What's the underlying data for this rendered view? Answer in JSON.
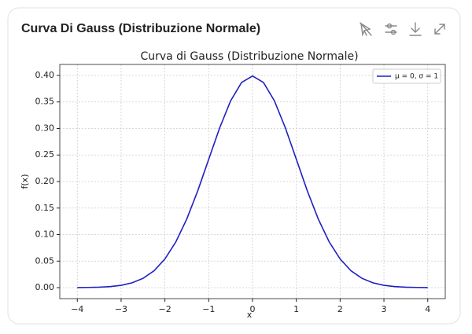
{
  "header": {
    "title": "Curva Di Gauss (Distribuzione Normale)"
  },
  "chart_data": {
    "type": "line",
    "title": "Curva di Gauss (Distribuzione Normale)",
    "x_label": "x",
    "y_label": "f(x)",
    "x": [
      -4,
      -3.75,
      -3.5,
      -3.25,
      -3,
      -2.75,
      -2.5,
      -2.25,
      -2,
      -1.75,
      -1.5,
      -1.25,
      -1,
      -0.75,
      -0.5,
      -0.25,
      0,
      0.25,
      0.5,
      0.75,
      1,
      1.25,
      1.5,
      1.75,
      2,
      2.25,
      2.5,
      2.75,
      3,
      3.25,
      3.5,
      3.75,
      4
    ],
    "series": [
      {
        "name": "μ = 0, σ = 1",
        "color": "#1f1fbf",
        "values": [
          0.0001,
          0.0004,
          0.0009,
          0.002,
          0.0044,
          0.0091,
          0.0175,
          0.0317,
          0.054,
          0.0863,
          0.1295,
          0.1826,
          0.242,
          0.3011,
          0.3521,
          0.3867,
          0.3989,
          0.3867,
          0.3521,
          0.3011,
          0.242,
          0.1826,
          0.1295,
          0.0863,
          0.054,
          0.0317,
          0.0175,
          0.0091,
          0.0044,
          0.002,
          0.0009,
          0.0004,
          0.0001
        ]
      }
    ],
    "xlim": [
      -4.4,
      4.4
    ],
    "xticks": [
      {
        "value": -4,
        "label": "−4"
      },
      {
        "value": -3,
        "label": "−3"
      },
      {
        "value": -2,
        "label": "−2"
      },
      {
        "value": -1,
        "label": "−1"
      },
      0,
      1,
      2,
      3,
      4
    ],
    "ylim": [
      -0.0207,
      0.4207
    ],
    "yticks": [
      {
        "value": 0,
        "label": "0.00"
      },
      {
        "value": 0.05,
        "label": "0.05"
      },
      {
        "value": 0.1,
        "label": "0.10"
      },
      {
        "value": 0.15,
        "label": "0.15"
      },
      {
        "value": 0.2,
        "label": "0.20"
      },
      {
        "value": 0.25,
        "label": "0.25"
      },
      {
        "value": 0.3,
        "label": "0.30"
      },
      {
        "value": 0.35,
        "label": "0.35"
      },
      {
        "value": 0.4,
        "label": "0.40"
      }
    ],
    "grid": true,
    "legend": "upper right"
  }
}
